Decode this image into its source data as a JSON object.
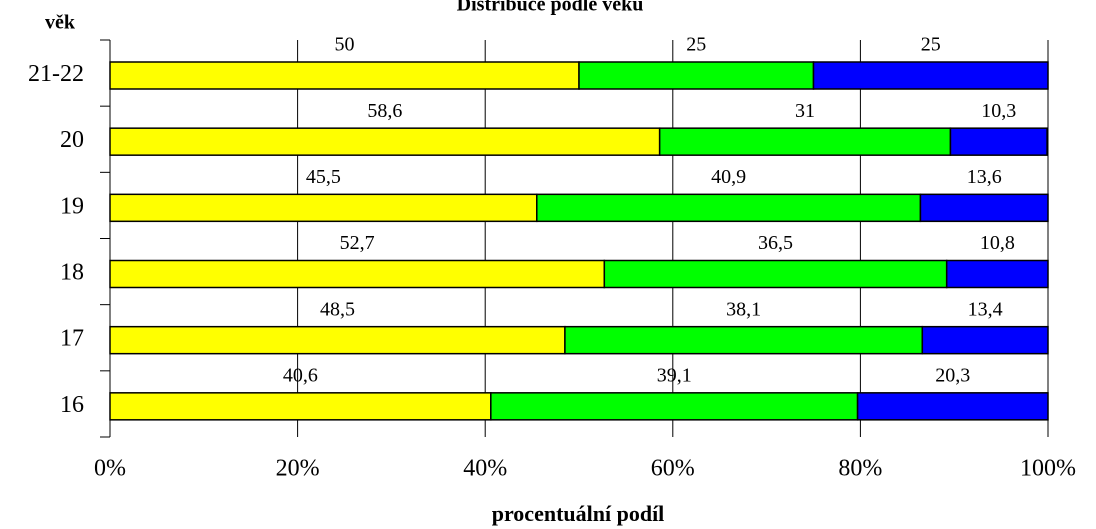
{
  "chart_data": {
    "type": "stacked_bar_horizontal",
    "title": "Distribuce podle věku",
    "y_label": "věk",
    "x_label": "procentuální podíl",
    "categories": [
      "21-22",
      "20",
      "19",
      "18",
      "17",
      "16"
    ],
    "series": [
      {
        "color": "#ffff00",
        "values": [
          50,
          58.6,
          45.5,
          52.7,
          48.5,
          40.6
        ],
        "value_labels": [
          "50",
          "58,6",
          "45,5",
          "52,7",
          "48,5",
          "40,6"
        ]
      },
      {
        "color": "#00ff00",
        "values": [
          25,
          31,
          40.9,
          36.5,
          38.1,
          39.1
        ],
        "value_labels": [
          "25",
          "31",
          "40,9",
          "36,5",
          "38,1",
          "39,1"
        ]
      },
      {
        "color": "#0000ff",
        "values": [
          25,
          10.3,
          13.6,
          10.8,
          13.4,
          20.3
        ],
        "value_labels": [
          "25",
          "10,3",
          "13,6",
          "10,8",
          "13,4",
          "20,3"
        ]
      }
    ],
    "xlim": [
      0,
      100
    ],
    "xticks": [
      {
        "value": 0,
        "label": "0%"
      },
      {
        "value": 20,
        "label": "20%"
      },
      {
        "value": 40,
        "label": "40%"
      },
      {
        "value": 60,
        "label": "60%"
      },
      {
        "value": 80,
        "label": "80%"
      },
      {
        "value": 100,
        "label": "100%"
      }
    ],
    "grid": true
  }
}
